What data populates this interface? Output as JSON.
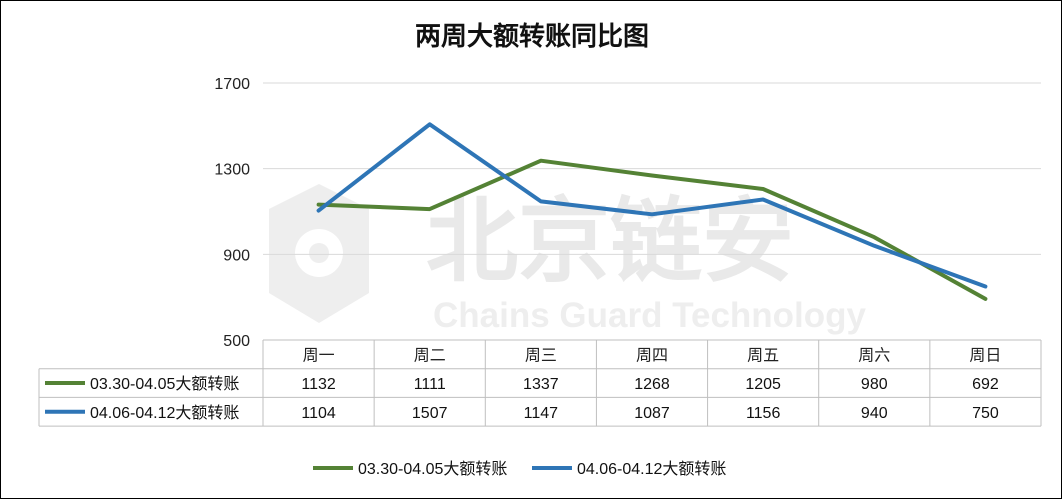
{
  "chart_data": {
    "type": "line",
    "title": "两周大额转账同比图",
    "categories": [
      "周一",
      "周二",
      "周三",
      "周四",
      "周五",
      "周六",
      "周日"
    ],
    "series": [
      {
        "name": "03.30-04.05大额转账",
        "color": "#548235",
        "values": [
          1132,
          1111,
          1337,
          1268,
          1205,
          980,
          692
        ]
      },
      {
        "name": "04.06-04.12大额转账",
        "color": "#2e75b6",
        "values": [
          1104,
          1507,
          1147,
          1087,
          1156,
          940,
          750
        ]
      }
    ],
    "y_ticks": [
      "1700",
      "1300",
      "900",
      "500"
    ],
    "ylim": [
      500,
      1700
    ],
    "grid": true,
    "data_table": true,
    "legend_position": "bottom",
    "watermark": {
      "cn": "北京链安",
      "en": "Chains Guard Technology"
    }
  }
}
